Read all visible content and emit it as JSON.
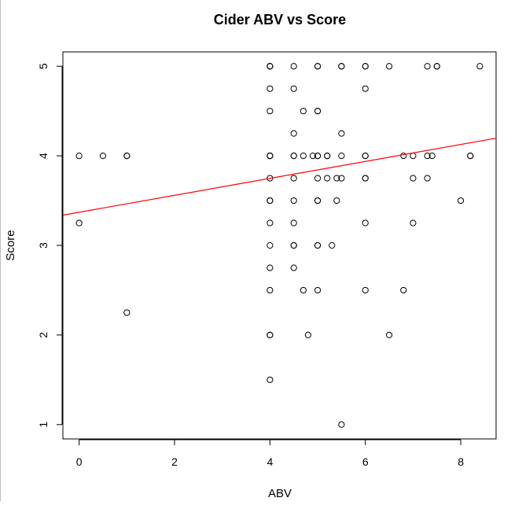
{
  "chart_data": {
    "type": "scatter",
    "title": "Cider ABV vs Score",
    "xlabel": "ABV",
    "ylabel": "Score",
    "xlim": [
      -0.34,
      8.74
    ],
    "ylim": [
      0.84,
      5.16
    ],
    "x_ticks": [
      0,
      2,
      4,
      6,
      8
    ],
    "y_ticks": [
      1,
      2,
      3,
      4,
      5
    ],
    "grid": false,
    "legend": "none",
    "point_style": "open-circle",
    "point_color": "#000000",
    "regression_line": {
      "color": "#ff0000",
      "intercept": 3.37,
      "slope": 0.0946
    },
    "points": [
      [
        0,
        4.0
      ],
      [
        0,
        3.25
      ],
      [
        0.5,
        4.0
      ],
      [
        1.0,
        4.0
      ],
      [
        1.0,
        4.0
      ],
      [
        1.0,
        2.25
      ],
      [
        4.0,
        5.0
      ],
      [
        4.0,
        5.0
      ],
      [
        4.0,
        5.0
      ],
      [
        4.0,
        4.75
      ],
      [
        4.0,
        4.5
      ],
      [
        4.0,
        4.0
      ],
      [
        4.0,
        4.0
      ],
      [
        4.0,
        4.0
      ],
      [
        4.0,
        3.75
      ],
      [
        4.0,
        3.5
      ],
      [
        4.0,
        3.5
      ],
      [
        4.0,
        3.25
      ],
      [
        4.0,
        3.0
      ],
      [
        4.0,
        2.75
      ],
      [
        4.0,
        2.5
      ],
      [
        4.0,
        2.0
      ],
      [
        4.0,
        2.0
      ],
      [
        4.0,
        1.5
      ],
      [
        4.5,
        5.0
      ],
      [
        4.5,
        4.75
      ],
      [
        4.5,
        4.25
      ],
      [
        4.5,
        4.0
      ],
      [
        4.5,
        4.0
      ],
      [
        4.5,
        3.75
      ],
      [
        4.5,
        3.5
      ],
      [
        4.5,
        3.25
      ],
      [
        4.5,
        3.0
      ],
      [
        4.5,
        3.0
      ],
      [
        4.5,
        2.75
      ],
      [
        4.7,
        4.5
      ],
      [
        4.7,
        4.0
      ],
      [
        4.7,
        2.5
      ],
      [
        4.8,
        2.0
      ],
      [
        4.9,
        4.0
      ],
      [
        5.0,
        5.0
      ],
      [
        5.0,
        5.0
      ],
      [
        5.0,
        4.5
      ],
      [
        5.0,
        4.5
      ],
      [
        5.0,
        4.0
      ],
      [
        5.0,
        4.0
      ],
      [
        5.0,
        3.75
      ],
      [
        5.0,
        3.5
      ],
      [
        5.0,
        3.5
      ],
      [
        5.0,
        3.0
      ],
      [
        5.0,
        3.0
      ],
      [
        5.0,
        2.5
      ],
      [
        5.2,
        4.0
      ],
      [
        5.2,
        4.0
      ],
      [
        5.2,
        3.75
      ],
      [
        5.3,
        3.0
      ],
      [
        5.4,
        3.75
      ],
      [
        5.4,
        3.5
      ],
      [
        5.5,
        5.0
      ],
      [
        5.5,
        5.0
      ],
      [
        5.5,
        4.25
      ],
      [
        5.5,
        4.0
      ],
      [
        5.5,
        3.75
      ],
      [
        5.5,
        1.0
      ],
      [
        6.0,
        5.0
      ],
      [
        6.0,
        5.0
      ],
      [
        6.0,
        4.75
      ],
      [
        6.0,
        4.0
      ],
      [
        6.0,
        4.0
      ],
      [
        6.0,
        3.75
      ],
      [
        6.0,
        3.75
      ],
      [
        6.0,
        3.25
      ],
      [
        6.0,
        2.5
      ],
      [
        6.5,
        5.0
      ],
      [
        6.5,
        2.0
      ],
      [
        6.8,
        4.0
      ],
      [
        6.8,
        2.5
      ],
      [
        7.0,
        4.0
      ],
      [
        7.0,
        3.75
      ],
      [
        7.0,
        3.25
      ],
      [
        7.3,
        5.0
      ],
      [
        7.3,
        4.0
      ],
      [
        7.3,
        3.75
      ],
      [
        7.4,
        4.0
      ],
      [
        7.5,
        5.0
      ],
      [
        7.5,
        5.0
      ],
      [
        8.0,
        3.5
      ],
      [
        8.2,
        4.0
      ],
      [
        8.2,
        4.0
      ],
      [
        8.4,
        5.0
      ]
    ]
  }
}
